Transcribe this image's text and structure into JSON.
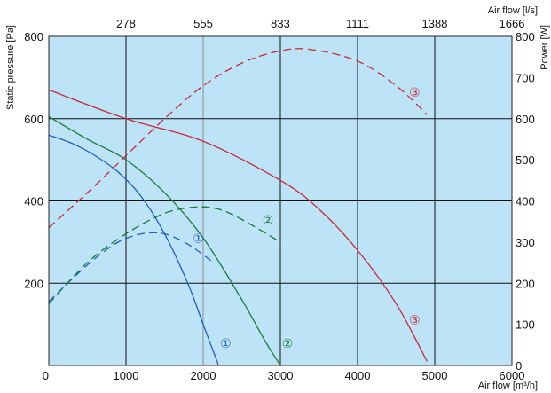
{
  "chart_data": {
    "type": "line",
    "xlabel": "Air flow [m³/h]",
    "x2label": "Air flow [l/s]",
    "ylabel": "Static pressure [Pa]",
    "y2label": "Power [W]",
    "xlim": [
      0,
      6000
    ],
    "ylim": [
      0,
      800
    ],
    "y2lim": [
      0,
      800
    ],
    "x_ticks": [
      0,
      1000,
      2000,
      3000,
      4000,
      5000,
      6000
    ],
    "x2_ticks": [
      "278",
      "555",
      "833",
      "1111",
      "1388",
      "1666"
    ],
    "y_ticks": [
      200,
      400,
      600,
      800
    ],
    "y2_ticks": [
      0,
      100,
      200,
      300,
      400,
      500,
      600,
      700,
      800
    ],
    "grid": true,
    "background": "#bde3f7",
    "series": [
      {
        "name": "①",
        "kind": "pressure",
        "color": "#1f5fbf",
        "x": [
          0,
          300,
          600,
          900,
          1200,
          1500,
          1800,
          2000,
          2200
        ],
        "y": [
          560,
          540,
          510,
          470,
          410,
          320,
          200,
          100,
          0
        ]
      },
      {
        "name": "②",
        "kind": "pressure",
        "color": "#1a7a3a",
        "x": [
          0,
          500,
          1000,
          1500,
          2000,
          2500,
          2800,
          3000
        ],
        "y": [
          605,
          550,
          500,
          420,
          310,
          160,
          60,
          0
        ]
      },
      {
        "name": "③",
        "kind": "pressure",
        "color": "#c8283c",
        "x": [
          0,
          1000,
          2000,
          3000,
          3500,
          4000,
          4500,
          4900
        ],
        "y": [
          670,
          600,
          545,
          450,
          380,
          280,
          150,
          10
        ]
      },
      {
        "name": "①",
        "kind": "power",
        "color": "#1f5fbf",
        "x": [
          0,
          300,
          600,
          900,
          1200,
          1500,
          1800,
          2100
        ],
        "y": [
          155,
          210,
          260,
          300,
          320,
          320,
          295,
          255
        ]
      },
      {
        "name": "②",
        "kind": "power",
        "color": "#1a7a3a",
        "x": [
          0,
          500,
          1000,
          1500,
          1900,
          2200,
          2500,
          3000
        ],
        "y": [
          150,
          250,
          320,
          370,
          385,
          380,
          355,
          300
        ]
      },
      {
        "name": "③",
        "kind": "power",
        "color": "#c8283c",
        "x": [
          0,
          500,
          1000,
          1500,
          2000,
          2500,
          3000,
          3400,
          4000,
          4500,
          4900
        ],
        "y": [
          335,
          420,
          510,
          600,
          680,
          735,
          765,
          768,
          740,
          680,
          610
        ]
      }
    ]
  }
}
